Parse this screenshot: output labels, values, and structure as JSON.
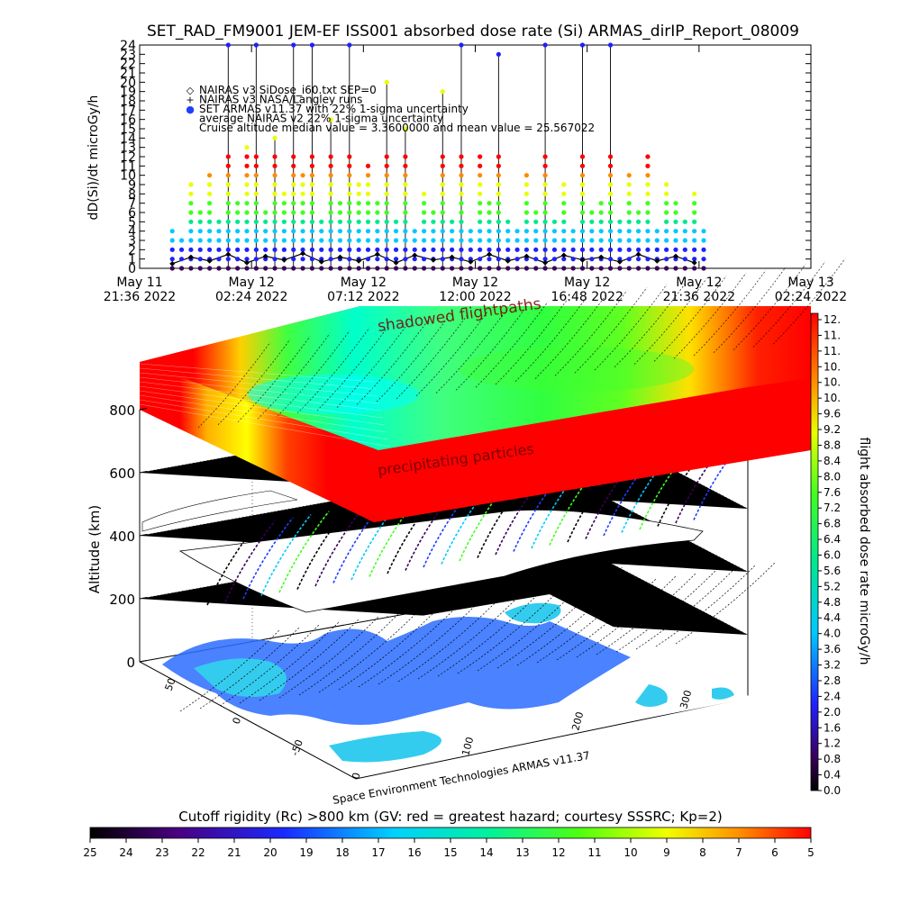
{
  "title": "SET_RAD_FM9001  JEM-EF ISS001 absorbed dose rate (Si) ARMAS_dirIP_Report_08009",
  "colors": {
    "nairas_sidose": "#000000",
    "nairas_nasa": "#000000",
    "armas": "#1f3fff",
    "map_ocean": "#2a6cff",
    "map_land": "#ffffff",
    "ocean_light": "#33ccee"
  },
  "top_chart": {
    "ylabel": "dD(Si)/dt microGy/h",
    "yticks": [
      "0",
      "1",
      "2",
      "3",
      "4",
      "5",
      "6",
      "7",
      "8",
      "9",
      "10",
      "11",
      "12",
      "13",
      "14",
      "15",
      "16",
      "17",
      "18",
      "19",
      "20",
      "21",
      "22",
      "23",
      "24"
    ],
    "xticks": [
      {
        "line1": "May 11",
        "line2": "21:36 2022"
      },
      {
        "line1": "May 12",
        "line2": "02:24 2022"
      },
      {
        "line1": "May 12",
        "line2": "07:12 2022"
      },
      {
        "line1": "May 12",
        "line2": "12:00 2022"
      },
      {
        "line1": "May 12",
        "line2": "16:48 2022"
      },
      {
        "line1": "May 12",
        "line2": "21:36 2022"
      },
      {
        "line1": "May 13",
        "line2": "02:24 2022"
      }
    ],
    "legend": [
      {
        "symbol": "◇",
        "text": "NAIRAS v3 SiDose_i60.txt SEP=0"
      },
      {
        "symbol": "+",
        "text": "NAIRAS v3 NASA/Langley runs"
      },
      {
        "symbol": "●",
        "text": "SET ARMAS v11.37 with 22% 1-sigma uncertainty"
      },
      {
        "symbol": "",
        "text": "average NAIRAS v2 22% 1-sigma uncertainty"
      },
      {
        "symbol": "",
        "text": "Cruise altitude median value = 3.3600000 and mean value = 25.567022"
      }
    ]
  },
  "map3d": {
    "ylabel": "Altitude (km)",
    "zticks": [
      "0",
      "200",
      "400",
      "600",
      "800"
    ],
    "lat_ticks": [
      "50",
      "0",
      "-50"
    ],
    "lon_ticks": [
      "0",
      "100",
      "200",
      "300"
    ],
    "label_shadowed": "shadowed flightpaths",
    "label_precip": "precipitating particles",
    "credit": "Space Environment Technologies ARMAS v11.37"
  },
  "right_colorbar": {
    "label": "flight absorbed dose rate microGy/h",
    "ticks": [
      "12.",
      "11.",
      "11.",
      "10.",
      "10.",
      "10.",
      "9.6",
      "9.2",
      "8.8",
      "8.4",
      "8.0",
      "7.6",
      "7.2",
      "6.8",
      "6.4",
      "6.0",
      "5.6",
      "5.2",
      "4.8",
      "4.4",
      "4.0",
      "3.6",
      "3.2",
      "2.8",
      "2.4",
      "2.0",
      "1.6",
      "1.2",
      "0.8",
      "0.4",
      "0.0"
    ]
  },
  "bottom_colorbar": {
    "label": "Cutoff rigidity (Rc) >800 km (GV: red = greatest hazard; courtesy SSSRC; Kp=2)",
    "ticks": [
      "25",
      "24",
      "23",
      "22",
      "21",
      "20",
      "19",
      "18",
      "17",
      "16",
      "15",
      "14",
      "13",
      "12",
      "11",
      "10",
      "9",
      "8",
      "7",
      "6",
      "5"
    ]
  },
  "chart_data": [
    {
      "type": "scatter",
      "title": "SET_RAD_FM9001  JEM-EF ISS001 absorbed dose rate (Si) ARMAS_dirIP_Report_08009",
      "ylabel": "dD(Si)/dt microGy/h",
      "xlabel": "",
      "ylim": [
        0,
        24
      ],
      "xlim_hours": [
        0,
        28.8
      ],
      "x_unit": "hours since May 11 21:36 2022",
      "series": [
        {
          "name": "SET ARMAS v11.37 with 22% 1-sigma uncertainty",
          "x": [
            1.4,
            1.8,
            2.2,
            2.6,
            3.0,
            3.4,
            3.8,
            4.2,
            4.6,
            5.0,
            5.4,
            5.8,
            6.2,
            6.6,
            7.0,
            7.4,
            7.8,
            8.2,
            8.6,
            9.0,
            9.4,
            9.8,
            10.2,
            10.6,
            11.0,
            11.4,
            11.8,
            12.2,
            12.6,
            13.0,
            13.4,
            13.8,
            14.2,
            14.6,
            15.0,
            15.4,
            15.8,
            16.2,
            16.6,
            17.0,
            17.4,
            17.8,
            18.2,
            18.6,
            19.0,
            19.4,
            19.8,
            20.2,
            20.6,
            21.0,
            21.4,
            21.8,
            22.2,
            22.6,
            23.0,
            23.4,
            23.8,
            24.2
          ],
          "y": [
            4,
            3,
            9,
            6,
            10,
            5,
            24,
            7,
            13,
            24,
            6,
            14,
            8,
            24,
            10,
            24,
            5,
            16,
            7,
            24,
            9,
            11,
            7,
            20,
            5,
            15,
            4,
            8,
            6,
            19,
            5,
            24,
            4,
            12,
            7,
            23,
            5,
            4,
            10,
            6,
            24,
            5,
            9,
            4,
            24,
            6,
            7,
            24,
            5,
            10,
            6,
            12,
            4,
            9,
            7,
            5,
            8,
            4
          ]
        },
        {
          "name": "NAIRAS v3 SiDose_i60.txt SEP=0",
          "x": [
            1.4,
            2.2,
            3.0,
            3.8,
            4.6,
            5.4,
            6.2,
            7.0,
            7.8,
            8.6,
            9.4,
            10.2,
            11.0,
            11.8,
            12.6,
            13.4,
            14.2,
            15.0,
            15.8,
            16.6,
            17.4,
            18.2,
            19.0,
            19.8,
            20.6,
            21.4,
            22.2,
            23.0,
            23.8
          ],
          "y": [
            0.5,
            1.2,
            0.8,
            1.5,
            0.6,
            1.3,
            0.9,
            1.6,
            0.7,
            1.2,
            0.8,
            1.5,
            0.6,
            1.4,
            0.9,
            1.2,
            0.7,
            1.5,
            0.8,
            1.3,
            0.6,
            1.4,
            0.9,
            1.2,
            0.7,
            1.5,
            0.8,
            1.3,
            0.6
          ]
        }
      ]
    }
  ]
}
